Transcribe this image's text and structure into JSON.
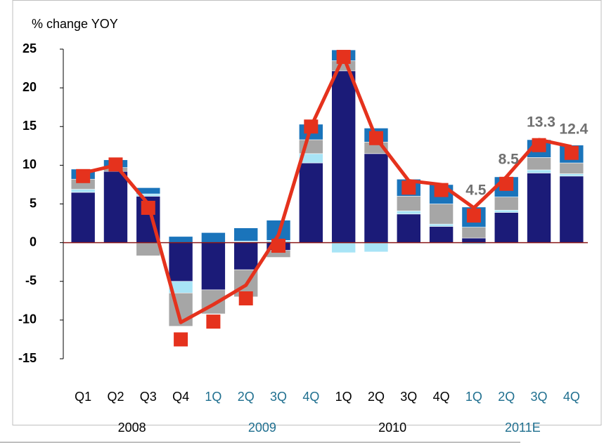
{
  "chart_data": {
    "type": "stacked_bar_line",
    "y_title": "% change YOY",
    "categories": [
      "Q1",
      "Q2",
      "Q3",
      "Q4",
      "1Q",
      "2Q",
      "3Q",
      "4Q",
      "1Q",
      "2Q",
      "3Q",
      "4Q",
      "1Q",
      "2Q",
      "3Q",
      "4Q"
    ],
    "groups": [
      {
        "label": "2008",
        "count": 4,
        "color": "#000000"
      },
      {
        "label": "2009",
        "count": 4,
        "color": "#1f6f8f"
      },
      {
        "label": "2010",
        "count": 4,
        "color": "#000000"
      },
      {
        "label": "2011E",
        "count": 4,
        "color": "#1f6f8f"
      }
    ],
    "series": [
      {
        "color": "#1b1b78",
        "values": [
          6.5,
          9.2,
          6.0,
          -5.0,
          -6.1,
          -3.5,
          -1.0,
          10.3,
          22.2,
          11.5,
          3.7,
          2.1,
          0.6,
          3.9,
          9.0,
          8.6
        ]
      },
      {
        "color": "#a8e4f6",
        "values": [
          0.4,
          0,
          0.3,
          -1.5,
          0,
          0.2,
          0.3,
          1.2,
          -1.3,
          -1.2,
          0.4,
          0.3,
          -0.2,
          0.3,
          0.4,
          0.3
        ]
      },
      {
        "color": "#a6a6a6",
        "values": [
          1.3,
          0.5,
          -1.7,
          -4.3,
          -3.1,
          -3.5,
          -0.9,
          1.8,
          1.3,
          1.5,
          1.9,
          2.6,
          1.4,
          1.7,
          1.6,
          1.4
        ]
      },
      {
        "color": "#1a74bb",
        "values": [
          1.3,
          1.0,
          0.8,
          0.8,
          1.3,
          1.7,
          2.6,
          2.0,
          1.4,
          1.8,
          2.2,
          2.5,
          2.6,
          2.6,
          2.3,
          2.3
        ]
      }
    ],
    "line": {
      "color": "#e5321d",
      "values": [
        9.0,
        10.0,
        5.0,
        -10.3,
        -8.0,
        -5.5,
        1.0,
        15.0,
        24.0,
        13.5,
        8.0,
        7.5,
        4.5,
        8.5,
        13.3,
        12.4
      ],
      "value_labels": [
        null,
        null,
        null,
        null,
        null,
        null,
        null,
        null,
        null,
        null,
        null,
        null,
        "4.5",
        "8.5",
        "13.3",
        "12.4"
      ]
    },
    "markers": {
      "color": "#e5321d",
      "values": [
        8.6,
        10.1,
        4.5,
        -12.5,
        -10.2,
        -7.2,
        -0.4,
        15.0,
        24.0,
        13.5,
        7.1,
        6.8,
        3.5,
        7.6,
        12.6,
        11.6
      ]
    },
    "ylim": [
      -15,
      25
    ],
    "yticks": [
      -15,
      -10,
      -5,
      0,
      5,
      10,
      15,
      20,
      25
    ],
    "zero_line_color": "#8b1a1a"
  }
}
